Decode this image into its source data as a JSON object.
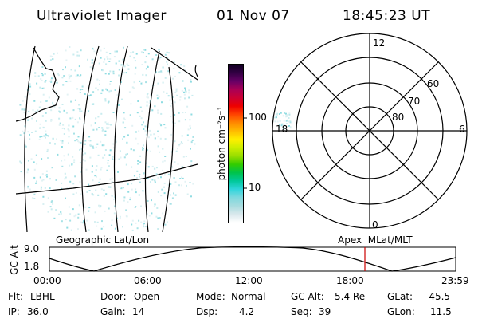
{
  "header": {
    "instrument": "Ultraviolet Imager",
    "date": "01 Nov 07",
    "time": "18:45:23 UT"
  },
  "colorbar": {
    "unit_label": "photon cm⁻²s⁻¹",
    "ticks": [
      "100",
      "10"
    ],
    "tick_values": [
      100,
      10
    ],
    "scale": "log",
    "colors": [
      "#ffffff",
      "#d9e8ec",
      "#a8dcdf",
      "#7fd9de",
      "#2fd5dc",
      "#00c89a",
      "#00c34a",
      "#33cc00",
      "#99dd00",
      "#ccee00",
      "#ffee00",
      "#ffbb00",
      "#ff8800",
      "#ff4400",
      "#ee0000",
      "#cc0033",
      "#aa0055",
      "#660066",
      "#330044",
      "#110022"
    ]
  },
  "polar_plot": {
    "mlt_labels": [
      "12",
      "18",
      "6",
      "0"
    ],
    "lat_labels": [
      "60",
      "70",
      "80"
    ]
  },
  "timeline": {
    "left_label": "Geographic Lat/Lon",
    "right_label": "Apex  MLat/MLT",
    "y_axis_label": "GC Alt",
    "y_ticks": [
      "9.0",
      "1.8"
    ],
    "x_ticks": [
      "00:00",
      "06:00",
      "12:00",
      "18:00",
      "23:59"
    ],
    "marker_time": "18:45",
    "marker_color": "#cc0000"
  },
  "status": {
    "flt_label": "Flt:",
    "flt_value": "LBHL",
    "ip_label": "IP:",
    "ip_value": "36.0",
    "door_label": "Door:",
    "door_value": "Open",
    "gain_label": "Gain:",
    "gain_value": "14",
    "mode_label": "Mode:",
    "mode_value": "Normal",
    "dsp_label": "Dsp:",
    "dsp_value": "4.2",
    "gcalt_label": "GC Alt:",
    "gcalt_value": "5.4 Re",
    "seq_label": "Seq:",
    "seq_value": "39",
    "glat_label": "GLat:",
    "glat_value": "-45.5",
    "glon_label": "GLon:",
    "glon_value": "11.5"
  }
}
